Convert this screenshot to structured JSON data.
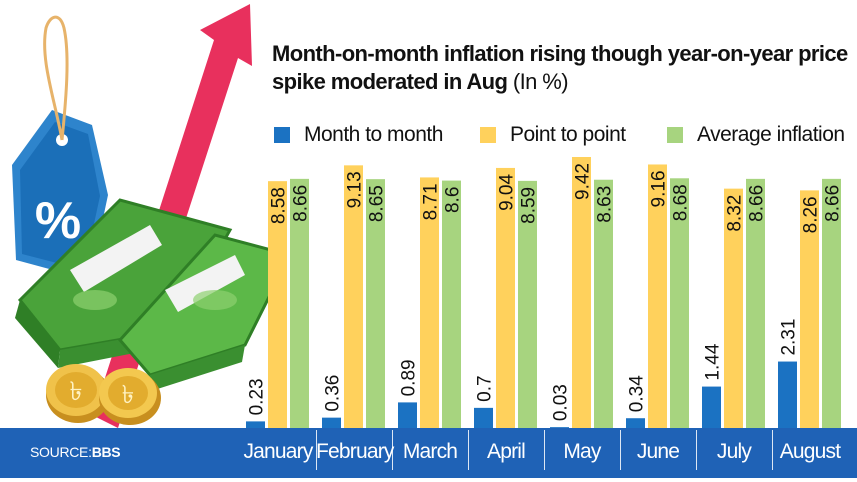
{
  "title": "Month-on-month inflation rising though year-on-year price spike moderated in Aug",
  "unit": "(In %)",
  "source_label": "SOURCE:",
  "source_name": "BBS",
  "colors": {
    "month_to_month": "#1b72c2",
    "point_to_point": "#ffd15c",
    "average": "#a7d47f",
    "footer": "#1f62b6",
    "arrow": "#e8305d"
  },
  "chart_data": {
    "type": "bar",
    "title": "Month-on-month inflation rising though year-on-year price spike moderated in Aug",
    "ylabel": "(In %)",
    "categories": [
      "January",
      "February",
      "March",
      "April",
      "May",
      "June",
      "July",
      "August"
    ],
    "series": [
      {
        "name": "Month to month",
        "values": [
          0.23,
          0.36,
          0.89,
          0.7,
          0.03,
          0.34,
          1.44,
          2.31
        ]
      },
      {
        "name": "Point to point",
        "values": [
          8.58,
          9.13,
          8.71,
          9.04,
          9.42,
          9.16,
          8.32,
          8.26
        ]
      },
      {
        "name": "Average inflation",
        "values": [
          8.66,
          8.65,
          8.6,
          8.59,
          8.63,
          8.68,
          8.66,
          8.66
        ]
      }
    ],
    "value_labels": [
      [
        "0.23",
        "0.36",
        "0.89",
        "0.7",
        "0.03",
        "0.34",
        "1.44",
        "2.31"
      ],
      [
        "8.58",
        "9.13",
        "8.71",
        "9.04",
        "9.42",
        "9.16",
        "8.32",
        "8.26"
      ],
      [
        "8.66",
        "8.65",
        "8.6",
        "8.59",
        "8.63",
        "8.68",
        "8.66",
        "8.66"
      ]
    ],
    "ylim": [
      0,
      9.42
    ],
    "grid": false,
    "legend_position": "top"
  }
}
